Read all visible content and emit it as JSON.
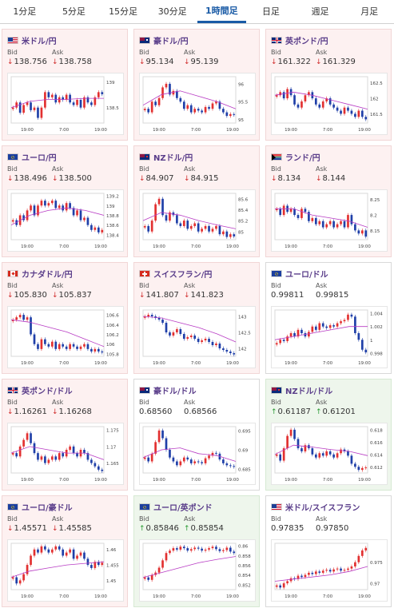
{
  "tabs": [
    {
      "label": "1分足",
      "active": false
    },
    {
      "label": "5分足",
      "active": false
    },
    {
      "label": "15分足",
      "active": false
    },
    {
      "label": "30分足",
      "active": false
    },
    {
      "label": "1時間足",
      "active": true
    },
    {
      "label": "日足",
      "active": false
    },
    {
      "label": "週足",
      "active": false
    },
    {
      "label": "月足",
      "active": false
    }
  ],
  "bid_label": "Bid",
  "ask_label": "Ask",
  "colors": {
    "down": "#d12b2b",
    "up": "#2a9a34",
    "candle_up": "#e23030",
    "candle_down": "#1f3fa8",
    "ma": "#b83cc4",
    "ma2": "#3c8fd8"
  },
  "pairs": [
    {
      "name": "米ドル/円",
      "flag": "us",
      "state": "down",
      "bid_dir": "down",
      "ask_dir": "down",
      "bid": "138.756",
      "ask": "138.758",
      "chart_data": {
        "type": "candlestick",
        "x_ticks": [
          "19:00",
          "7:00",
          "19:00"
        ],
        "y_ticks": [
          "139",
          "138.5"
        ],
        "ylim": [
          138.2,
          139.1
        ],
        "ma": [
          138.5,
          138.62,
          138.66,
          138.66,
          138.68,
          138.68
        ],
        "closes": [
          138.5,
          138.6,
          138.4,
          138.55,
          138.6,
          138.45,
          138.5,
          138.3,
          138.5,
          138.8,
          138.7,
          138.75,
          138.6,
          138.7,
          138.65,
          138.75,
          138.6,
          138.55,
          138.65,
          138.5,
          138.7,
          138.6,
          138.55,
          138.7,
          138.8,
          138.76
        ]
      }
    },
    {
      "name": "豪ドル/円",
      "flag": "au",
      "state": "down",
      "bid_dir": "down",
      "ask_dir": "down",
      "bid": "95.134",
      "ask": "95.139",
      "chart_data": {
        "type": "candlestick",
        "x_ticks": [
          "19:00",
          "7:00",
          "19:00"
        ],
        "y_ticks": [
          "96",
          "95.5",
          "95"
        ],
        "ylim": [
          94.9,
          96.2
        ],
        "ma": [
          95.4,
          95.7,
          95.8,
          95.65,
          95.5,
          95.3
        ],
        "closes": [
          95.3,
          95.2,
          95.5,
          95.4,
          95.6,
          95.9,
          96.0,
          95.7,
          95.8,
          95.6,
          95.5,
          95.3,
          95.4,
          95.2,
          95.3,
          95.25,
          95.2,
          95.35,
          95.3,
          95.45,
          95.5,
          95.3,
          95.2,
          95.1,
          95.15,
          95.13
        ]
      }
    },
    {
      "name": "英ポンド/円",
      "flag": "gb",
      "state": "down",
      "bid_dir": "down",
      "ask_dir": "down",
      "bid": "161.322",
      "ask": "161.329",
      "chart_data": {
        "type": "candlestick",
        "x_ticks": [
          "19:00",
          "7:00",
          "19:00"
        ],
        "y_ticks": [
          "162.5",
          "162",
          "161.5"
        ],
        "ylim": [
          161.2,
          162.7
        ],
        "ma": [
          162.1,
          162.2,
          162.1,
          161.95,
          161.8,
          161.65
        ],
        "closes": [
          162.1,
          162.2,
          162.0,
          162.3,
          162.1,
          161.8,
          161.7,
          161.9,
          162.1,
          162.2,
          162.0,
          161.8,
          161.7,
          161.9,
          162.0,
          161.8,
          161.7,
          161.6,
          161.5,
          161.7,
          161.6,
          161.5,
          161.4,
          161.6,
          161.4,
          161.32
        ]
      }
    },
    {
      "name": "ユーロ/円",
      "flag": "eu",
      "state": "down",
      "bid_dir": "down",
      "ask_dir": "down",
      "bid": "138.496",
      "ask": "138.500",
      "chart_data": {
        "type": "candlestick",
        "x_ticks": [
          "19:00",
          "7:00",
          "19:00"
        ],
        "y_ticks": [
          "139.2",
          "139",
          "138.8",
          "138.6",
          "138.4"
        ],
        "ylim": [
          138.3,
          139.25
        ],
        "ma": [
          138.6,
          138.8,
          138.9,
          138.95,
          138.9,
          138.8
        ],
        "closes": [
          138.7,
          138.6,
          138.8,
          138.7,
          138.9,
          139.0,
          138.8,
          139.0,
          139.1,
          139.0,
          139.05,
          139.1,
          138.95,
          139.0,
          138.9,
          139.05,
          138.95,
          138.8,
          138.9,
          138.7,
          138.75,
          138.6,
          138.5,
          138.55,
          138.45,
          138.5
        ]
      }
    },
    {
      "name": "NZドル/円",
      "flag": "nz",
      "state": "down",
      "bid_dir": "down",
      "ask_dir": "down",
      "bid": "84.907",
      "ask": "84.915",
      "chart_data": {
        "type": "candlestick",
        "x_ticks": [
          "19:00",
          "7:00",
          "19:00"
        ],
        "y_ticks": [
          "85.6",
          "85.4",
          "85.2",
          "85"
        ],
        "ylim": [
          84.85,
          85.7
        ],
        "ma": [
          85.2,
          85.35,
          85.3,
          85.2,
          85.12,
          85.05
        ],
        "closes": [
          85.1,
          85.0,
          85.2,
          85.5,
          85.6,
          85.3,
          85.2,
          85.35,
          85.3,
          85.15,
          85.1,
          85.2,
          85.05,
          85.1,
          85.15,
          85.0,
          85.05,
          85.1,
          85.0,
          85.05,
          85.1,
          84.95,
          85.0,
          84.9,
          84.95,
          84.91
        ]
      }
    },
    {
      "name": "ランド/円",
      "flag": "za",
      "state": "down",
      "bid_dir": "down",
      "ask_dir": "down",
      "bid": "8.134",
      "ask": "8.144",
      "chart_data": {
        "type": "candlestick",
        "x_ticks": [
          "19:00",
          "7:00",
          "19:00"
        ],
        "y_ticks": [
          "8.25",
          "8.2",
          "8.15"
        ],
        "ylim": [
          8.12,
          8.27
        ],
        "ma": [
          8.22,
          8.22,
          8.2,
          8.19,
          8.18,
          8.16
        ],
        "closes": [
          8.22,
          8.2,
          8.23,
          8.21,
          8.22,
          8.2,
          8.19,
          8.22,
          8.21,
          8.18,
          8.19,
          8.17,
          8.18,
          8.16,
          8.17,
          8.18,
          8.16,
          8.17,
          8.18,
          8.16,
          8.2,
          8.17,
          8.15,
          8.14,
          8.15,
          8.13
        ]
      }
    },
    {
      "name": "カナダドル/円",
      "flag": "ca",
      "state": "down",
      "bid_dir": "down",
      "ask_dir": "down",
      "bid": "105.830",
      "ask": "105.837",
      "chart_data": {
        "type": "candlestick",
        "x_ticks": [
          "19:00",
          "7:00",
          "19:00"
        ],
        "y_ticks": [
          "106.6",
          "106.4",
          "106.2",
          "106",
          "105.8"
        ],
        "ylim": [
          105.75,
          106.7
        ],
        "ma": [
          106.5,
          106.45,
          106.35,
          106.25,
          106.1,
          105.95
        ],
        "closes": [
          106.5,
          106.55,
          106.6,
          106.5,
          106.55,
          106.2,
          106.0,
          105.9,
          106.1,
          106.0,
          105.95,
          106.05,
          105.9,
          106.0,
          105.95,
          105.9,
          106.0,
          105.95,
          105.9,
          105.95,
          106.0,
          105.9,
          105.85,
          105.9,
          105.85,
          105.83
        ]
      }
    },
    {
      "name": "スイスフラン/円",
      "flag": "ch",
      "state": "down",
      "bid_dir": "down",
      "ask_dir": "down",
      "bid": "141.807",
      "ask": "141.823",
      "chart_data": {
        "type": "candlestick",
        "x_ticks": [
          "19:00",
          "7:00",
          "19:00"
        ],
        "y_ticks": [
          "143",
          "142.5",
          "142"
        ],
        "ylim": [
          141.75,
          143.2
        ],
        "ma": [
          143.0,
          142.95,
          142.8,
          142.65,
          142.45,
          142.2
        ],
        "closes": [
          143.0,
          143.05,
          143.0,
          142.95,
          142.9,
          142.8,
          142.5,
          142.4,
          142.5,
          142.6,
          142.45,
          142.3,
          142.35,
          142.4,
          142.3,
          142.2,
          142.25,
          142.3,
          142.2,
          142.1,
          142.15,
          142.0,
          141.95,
          141.9,
          141.85,
          141.81
        ]
      }
    },
    {
      "name": "ユーロ/ドル",
      "flag": "eu",
      "state": "neutral",
      "bid_dir": "none",
      "ask_dir": "none",
      "bid": "0.99811",
      "ask": "0.99815",
      "chart_data": {
        "type": "candlestick",
        "x_ticks": [
          "19:00",
          "7:00",
          "19:00"
        ],
        "y_ticks": [
          "1.004",
          "1.002",
          "1",
          "0.998"
        ],
        "ylim": [
          0.9975,
          1.0045
        ],
        "ma": [
          1.0,
          1.0005,
          1.001,
          1.0015,
          1.002,
          1.002
        ],
        "closes": [
          0.9995,
          1.0,
          0.9998,
          1.0005,
          1.001,
          1.0005,
          1.0015,
          1.001,
          1.0005,
          1.0012,
          1.002,
          1.0015,
          1.0025,
          1.002,
          1.0018,
          1.0022,
          1.002,
          1.0025,
          1.0028,
          1.003,
          1.0038,
          1.0035,
          1.001,
          1.0,
          0.9985,
          0.9981
        ]
      }
    },
    {
      "name": "英ポンド/ドル",
      "flag": "gb",
      "state": "down",
      "bid_dir": "down",
      "ask_dir": "down",
      "bid": "1.16261",
      "ask": "1.16268",
      "chart_data": {
        "type": "candlestick",
        "x_ticks": [
          "19:00",
          "7:00",
          "19:00"
        ],
        "y_ticks": [
          "1.175",
          "1.17",
          "1.165"
        ],
        "ylim": [
          1.162,
          1.176
        ],
        "ma": [
          1.168,
          1.17,
          1.169,
          1.168,
          1.168,
          1.166
        ],
        "closes": [
          1.168,
          1.167,
          1.17,
          1.172,
          1.174,
          1.171,
          1.168,
          1.166,
          1.167,
          1.165,
          1.166,
          1.167,
          1.166,
          1.168,
          1.167,
          1.169,
          1.17,
          1.168,
          1.167,
          1.169,
          1.168,
          1.166,
          1.165,
          1.164,
          1.163,
          1.1626
        ]
      }
    },
    {
      "name": "豪ドル/ドル",
      "flag": "au",
      "state": "neutral",
      "bid_dir": "none",
      "ask_dir": "none",
      "bid": "0.68560",
      "ask": "0.68566",
      "chart_data": {
        "type": "candlestick",
        "x_ticks": [
          "19:00",
          "7:00",
          "19:00"
        ],
        "y_ticks": [
          "0.695",
          "0.69",
          "0.685"
        ],
        "ylim": [
          0.684,
          0.696
        ],
        "ma": [
          0.688,
          0.69,
          0.6905,
          0.689,
          0.6885,
          0.687
        ],
        "closes": [
          0.688,
          0.687,
          0.689,
          0.692,
          0.695,
          0.693,
          0.69,
          0.688,
          0.687,
          0.686,
          0.687,
          0.688,
          0.6875,
          0.6865,
          0.687,
          0.6868,
          0.6865,
          0.6878,
          0.6885,
          0.6892,
          0.689,
          0.6875,
          0.6865,
          0.686,
          0.6858,
          0.6856
        ]
      }
    },
    {
      "name": "NZドル/ドル",
      "flag": "nz",
      "state": "up",
      "bid_dir": "up",
      "ask_dir": "up",
      "bid": "0.61187",
      "ask": "0.61201",
      "chart_data": {
        "type": "candlestick",
        "x_ticks": [
          "19:00",
          "7:00",
          "19:00"
        ],
        "y_ticks": [
          "0.618",
          "0.616",
          "0.614",
          "0.612"
        ],
        "ylim": [
          0.611,
          0.6185
        ],
        "ma": [
          0.614,
          0.6155,
          0.6152,
          0.6148,
          0.6145,
          0.6138
        ],
        "closes": [
          0.614,
          0.613,
          0.615,
          0.617,
          0.618,
          0.6165,
          0.615,
          0.6145,
          0.6155,
          0.615,
          0.614,
          0.6135,
          0.6142,
          0.6138,
          0.6145,
          0.614,
          0.6135,
          0.6142,
          0.6148,
          0.6145,
          0.6138,
          0.6125,
          0.612,
          0.6115,
          0.6118,
          0.6119
        ]
      }
    },
    {
      "name": "ユーロ/豪ドル",
      "flag": "eu",
      "state": "down",
      "bid_dir": "down",
      "ask_dir": "down",
      "bid": "1.45571",
      "ask": "1.45585",
      "chart_data": {
        "type": "candlestick",
        "x_ticks": [
          "19:00",
          "7:00",
          "19:00"
        ],
        "y_ticks": [
          "1.46",
          "1.455",
          "1.45"
        ],
        "ylim": [
          1.447,
          1.462
        ],
        "ma": [
          1.451,
          1.453,
          1.454,
          1.455,
          1.4555,
          1.456
        ],
        "closes": [
          1.451,
          1.449,
          1.45,
          1.452,
          1.455,
          1.458,
          1.46,
          1.459,
          1.461,
          1.46,
          1.459,
          1.46,
          1.461,
          1.46,
          1.458,
          1.459,
          1.46,
          1.457,
          1.458,
          1.459,
          1.457,
          1.455,
          1.454,
          1.456,
          1.455,
          1.4557
        ]
      }
    },
    {
      "name": "ユーロ/英ポンド",
      "flag": "eu",
      "state": "up",
      "bid_dir": "up",
      "ask_dir": "up",
      "bid": "0.85846",
      "ask": "0.85854",
      "chart_data": {
        "type": "candlestick",
        "x_ticks": [
          "19:00",
          "7:00",
          "19:00"
        ],
        "y_ticks": [
          "0.86",
          "0.858",
          "0.856",
          "0.854",
          "0.852"
        ],
        "ylim": [
          0.851,
          0.8605
        ],
        "ma": [
          0.8535,
          0.8545,
          0.8555,
          0.8565,
          0.8572,
          0.8578
        ],
        "closes": [
          0.8535,
          0.853,
          0.854,
          0.8545,
          0.8555,
          0.857,
          0.8585,
          0.859,
          0.8595,
          0.8592,
          0.8598,
          0.8595,
          0.859,
          0.8593,
          0.8596,
          0.8594,
          0.859,
          0.8592,
          0.8595,
          0.8598,
          0.8593,
          0.8589,
          0.8591,
          0.8596,
          0.8588,
          0.8585
        ]
      }
    },
    {
      "name": "米ドル/スイスフラン",
      "flag": "us",
      "state": "neutral",
      "bid_dir": "none",
      "ask_dir": "none",
      "bid": "0.97835",
      "ask": "0.97850",
      "chart_data": {
        "type": "candlestick",
        "x_ticks": [
          "19:00",
          "7:00",
          "19:00"
        ],
        "y_ticks": [
          "0.975",
          "0.97"
        ],
        "ylim": [
          0.9685,
          0.9795
        ],
        "ma": [
          0.9705,
          0.971,
          0.9715,
          0.972,
          0.9728,
          0.974
        ],
        "closes": [
          0.9695,
          0.969,
          0.97,
          0.9705,
          0.9712,
          0.971,
          0.9718,
          0.9715,
          0.972,
          0.9725,
          0.9722,
          0.9728,
          0.9725,
          0.973,
          0.9732,
          0.9728,
          0.9733,
          0.9735,
          0.973,
          0.9732,
          0.9735,
          0.974,
          0.975,
          0.9765,
          0.9778,
          0.9784
        ]
      }
    }
  ]
}
